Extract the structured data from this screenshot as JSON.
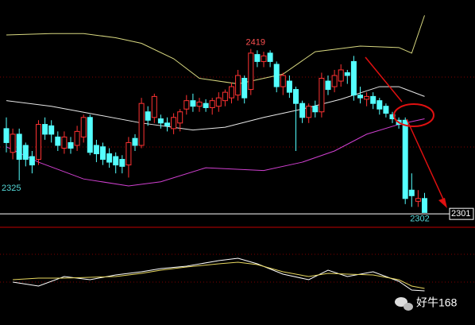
{
  "chart_data": [
    {
      "type": "candlestick",
      "ylim": [
        2292,
        2454
      ],
      "up_color": "#ff3232",
      "down_color": "#54ffff",
      "open": [
        2362,
        2345,
        2358,
        2350,
        2342,
        2340,
        2365,
        2364,
        2356,
        2348,
        2352,
        2350,
        2356,
        2370,
        2350,
        2349,
        2344,
        2342,
        2340,
        2336,
        2355,
        2350,
        2374,
        2370,
        2369,
        2366,
        2362,
        2366,
        2376,
        2382,
        2378,
        2380,
        2377,
        2378,
        2382,
        2384,
        2386,
        2398,
        2390,
        2415,
        2410,
        2416,
        2408,
        2392,
        2396,
        2390,
        2380,
        2370,
        2378,
        2374,
        2396,
        2392,
        2396,
        2402,
        2410,
        2386,
        2383,
        2385,
        2382,
        2378,
        2372,
        2368,
        2368,
        2318,
        2310,
        2312
      ],
      "high": [
        2370,
        2362,
        2362,
        2352,
        2346,
        2368,
        2370,
        2368,
        2360,
        2360,
        2356,
        2364,
        2372,
        2372,
        2354,
        2352,
        2348,
        2345,
        2343,
        2356,
        2358,
        2384,
        2378,
        2387,
        2372,
        2370,
        2373,
        2376,
        2386,
        2387,
        2384,
        2383,
        2384,
        2388,
        2390,
        2395,
        2404,
        2400,
        2419,
        2418,
        2417,
        2418,
        2410,
        2402,
        2400,
        2392,
        2382,
        2380,
        2382,
        2402,
        2400,
        2404,
        2408,
        2404,
        2414,
        2392,
        2388,
        2388,
        2384,
        2380,
        2374,
        2370,
        2370,
        2330,
        2318,
        2316
      ],
      "low": [
        2345,
        2340,
        2325,
        2335,
        2330,
        2336,
        2354,
        2352,
        2346,
        2344,
        2344,
        2346,
        2352,
        2343,
        2338,
        2336,
        2334,
        2330,
        2330,
        2327,
        2346,
        2348,
        2364,
        2366,
        2362,
        2360,
        2358,
        2360,
        2372,
        2374,
        2374,
        2374,
        2372,
        2374,
        2378,
        2380,
        2382,
        2380,
        2386,
        2406,
        2406,
        2406,
        2388,
        2386,
        2384,
        2346,
        2366,
        2366,
        2370,
        2370,
        2386,
        2388,
        2392,
        2394,
        2382,
        2380,
        2378,
        2376,
        2372,
        2370,
        2366,
        2362,
        2308,
        2306,
        2306,
        2302
      ],
      "close": [
        2352,
        2358,
        2340,
        2340,
        2336,
        2365,
        2358,
        2358,
        2350,
        2356,
        2348,
        2360,
        2370,
        2345,
        2344,
        2340,
        2338,
        2336,
        2335,
        2352,
        2350,
        2380,
        2368,
        2385,
        2366,
        2364,
        2370,
        2374,
        2382,
        2378,
        2381,
        2377,
        2382,
        2384,
        2388,
        2392,
        2400,
        2384,
        2416,
        2410,
        2414,
        2410,
        2392,
        2400,
        2388,
        2380,
        2370,
        2378,
        2374,
        2398,
        2390,
        2400,
        2404,
        2400,
        2386,
        2384,
        2385,
        2380,
        2376,
        2373,
        2369,
        2365,
        2312,
        2314,
        2312,
        2302
      ],
      "series": [
        {
          "color": "#d8d880",
          "x": [
            0,
            7,
            12,
            17,
            21,
            26,
            30,
            36,
            43,
            48,
            55,
            61,
            63,
            65
          ],
          "values": [
            2429,
            2430,
            2430,
            2427,
            2423,
            2412,
            2398,
            2394,
            2401,
            2417,
            2421,
            2420,
            2416,
            2443
          ]
        },
        {
          "color": "#e8e8e8",
          "x": [
            0,
            7,
            14,
            21,
            29,
            34,
            40,
            46,
            52,
            58,
            61,
            65
          ],
          "values": [
            2382,
            2378,
            2372,
            2366,
            2361,
            2363,
            2370,
            2376,
            2383,
            2392,
            2392,
            2385
          ]
        },
        {
          "color": "#d040d0",
          "x": [
            0,
            5,
            12,
            19,
            24,
            31,
            40,
            46,
            51,
            56,
            61,
            65
          ],
          "values": [
            2349,
            2338,
            2326,
            2321,
            2324,
            2334,
            2332,
            2338,
            2346,
            2358,
            2365,
            2369
          ]
        }
      ],
      "high_label": 2419,
      "low_label": 2325,
      "last_low_label": 2302,
      "price_label": 2301,
      "watermark": "好牛168"
    },
    {
      "type": "line",
      "ylim": [
        0,
        100
      ],
      "series": [
        {
          "color": "#ffffff",
          "x": [
            1,
            5,
            9,
            13,
            17,
            21,
            24,
            28,
            33,
            36,
            39,
            43,
            47,
            50,
            53,
            57,
            61,
            63,
            65
          ],
          "values": [
            35,
            30,
            42,
            38,
            44,
            48,
            52,
            55,
            62,
            65,
            58,
            45,
            38,
            50,
            42,
            48,
            36,
            25,
            24
          ]
        },
        {
          "color": "#e8d860",
          "x": [
            1,
            5,
            9,
            13,
            17,
            21,
            24,
            28,
            33,
            36,
            39,
            43,
            47,
            50,
            53,
            57,
            61,
            63,
            65
          ],
          "values": [
            38,
            40,
            40,
            41,
            42,
            46,
            50,
            54,
            58,
            60,
            57,
            48,
            42,
            46,
            45,
            44,
            38,
            30,
            27
          ]
        }
      ]
    }
  ]
}
